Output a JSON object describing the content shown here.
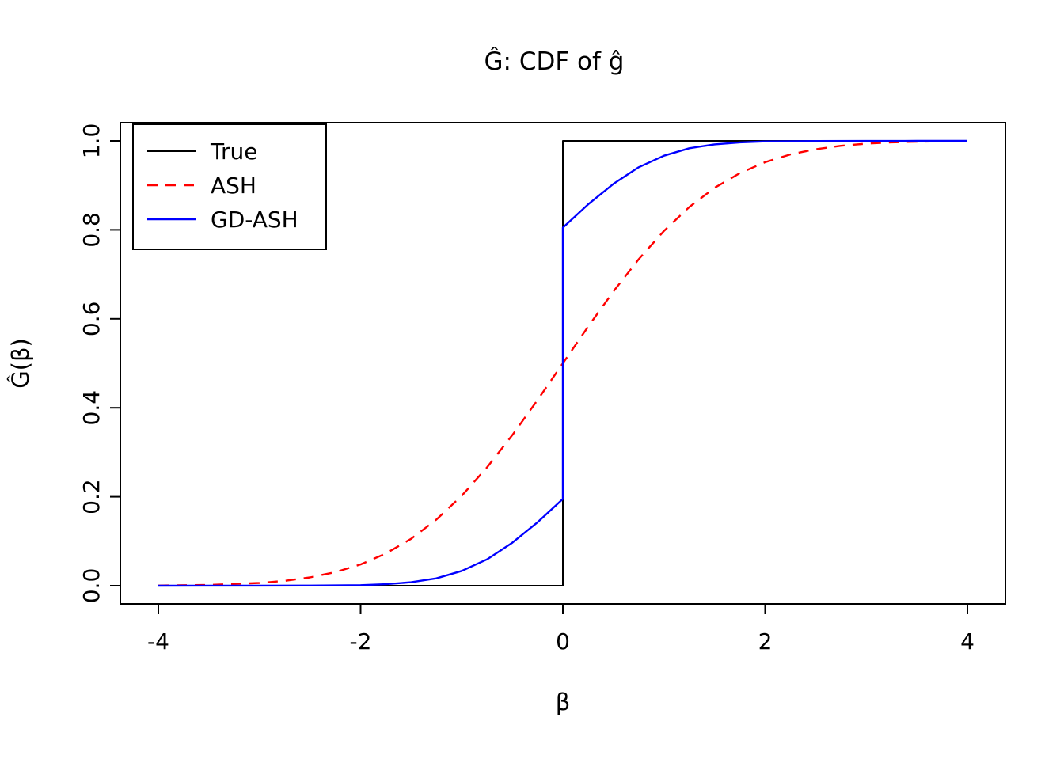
{
  "title": "Ĝ: CDF of ĝ",
  "chart_data": {
    "type": "line",
    "title": "Ĝ: CDF of ĝ",
    "xlabel": "β",
    "ylabel": "Ĝ(β)",
    "xlim": [
      -4,
      4
    ],
    "ylim": [
      0,
      1
    ],
    "grid": false,
    "legend_position": "top-left",
    "x_ticks": {
      "values": [
        -4,
        -2,
        0,
        2,
        4
      ],
      "labels": [
        "-4",
        "-2",
        "0",
        "2",
        "4"
      ]
    },
    "y_ticks": {
      "values": [
        0,
        0.2,
        0.4,
        0.6,
        0.8,
        1
      ],
      "labels": [
        "0.0",
        "0.2",
        "0.4",
        "0.6",
        "0.8",
        "1.0"
      ]
    },
    "series": [
      {
        "name": "True",
        "color": "#000000",
        "style": "solid",
        "width": 2,
        "points": [
          [
            -4,
            0
          ],
          [
            0,
            0
          ],
          [
            0,
            1
          ],
          [
            4,
            1
          ]
        ]
      },
      {
        "name": "ASH",
        "color": "#ff0000",
        "style": "dashed",
        "width": 2.4,
        "points": [
          [
            -4,
            0.0004
          ],
          [
            -3.5,
            0.0018
          ],
          [
            -3,
            0.0062
          ],
          [
            -2.75,
            0.011
          ],
          [
            -2.5,
            0.0186
          ],
          [
            -2.25,
            0.0304
          ],
          [
            -2,
            0.0478
          ],
          [
            -1.75,
            0.0724
          ],
          [
            -1.5,
            0.1056
          ],
          [
            -1.25,
            0.1488
          ],
          [
            -1,
            0.2024
          ],
          [
            -0.75,
            0.266
          ],
          [
            -0.5,
            0.3384
          ],
          [
            -0.25,
            0.4176
          ],
          [
            0,
            0.5
          ],
          [
            0.25,
            0.5824
          ],
          [
            0.5,
            0.6616
          ],
          [
            0.75,
            0.734
          ],
          [
            1,
            0.7976
          ],
          [
            1.25,
            0.8512
          ],
          [
            1.5,
            0.8944
          ],
          [
            1.75,
            0.9276
          ],
          [
            2,
            0.9522
          ],
          [
            2.25,
            0.9696
          ],
          [
            2.5,
            0.9814
          ],
          [
            2.75,
            0.989
          ],
          [
            3,
            0.9938
          ],
          [
            3.25,
            0.9966
          ],
          [
            3.5,
            0.9982
          ],
          [
            3.75,
            0.999
          ],
          [
            4,
            0.9996
          ]
        ]
      },
      {
        "name": "GD-ASH",
        "color": "#0000ff",
        "style": "solid",
        "width": 2.4,
        "points": [
          [
            -4,
            0
          ],
          [
            -3,
            0.0001
          ],
          [
            -2.5,
            0.0003
          ],
          [
            -2,
            0.0012
          ],
          [
            -1.75,
            0.0034
          ],
          [
            -1.5,
            0.0079
          ],
          [
            -1.25,
            0.0166
          ],
          [
            -1,
            0.0333
          ],
          [
            -0.75,
            0.0592
          ],
          [
            -0.5,
            0.0967
          ],
          [
            -0.25,
            0.1427
          ],
          [
            0,
            0.195
          ],
          [
            0,
            0.805
          ],
          [
            0.25,
            0.8573
          ],
          [
            0.5,
            0.9033
          ],
          [
            0.75,
            0.9408
          ],
          [
            1,
            0.9667
          ],
          [
            1.25,
            0.9834
          ],
          [
            1.5,
            0.9921
          ],
          [
            1.75,
            0.9966
          ],
          [
            2,
            0.9988
          ],
          [
            2.5,
            0.9997
          ],
          [
            3,
            0.9999
          ],
          [
            3.5,
            1
          ],
          [
            4,
            1
          ]
        ]
      }
    ]
  }
}
